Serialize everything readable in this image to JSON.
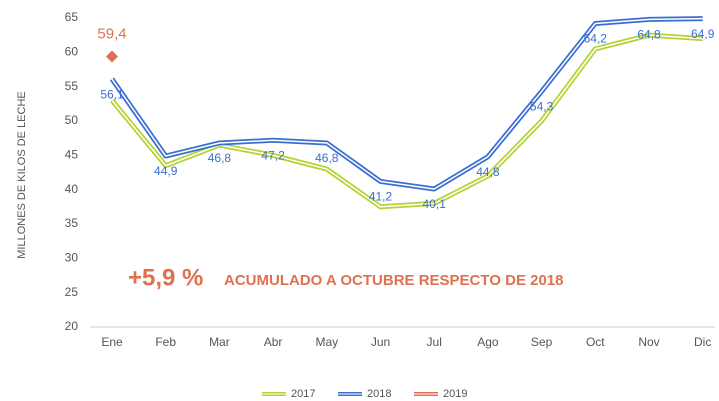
{
  "chart_data": {
    "type": "line",
    "y_label": "MILLONES DE KILOS DE LECHE",
    "annotation_value": "+5,9 %",
    "annotation_text": "ACUMULADO A OCTUBRE RESPECTO DE 2018",
    "categories": [
      "Ene",
      "Feb",
      "Mar",
      "Abr",
      "May",
      "Jun",
      "Jul",
      "Ago",
      "Sep",
      "Oct",
      "Nov",
      "Dic"
    ],
    "ylim": [
      20,
      65
    ],
    "yticks": [
      20,
      25,
      30,
      35,
      40,
      45,
      50,
      55,
      60,
      65
    ],
    "grid": false,
    "series": [
      {
        "name": "2017",
        "color": "#b5d334",
        "values": [
          53,
          43.5,
          46.5,
          45,
          43,
          37.5,
          38,
          42,
          50,
          60.5,
          62.5,
          62
        ]
      },
      {
        "name": "2018",
        "color": "#3a6fd0",
        "values": [
          56.1,
          44.9,
          46.8,
          47.2,
          46.8,
          41.2,
          40.1,
          44.8,
          54.3,
          64.2,
          64.8,
          64.9
        ],
        "value_labels": [
          "56,1",
          "44,9",
          "46,8",
          "47,2",
          "46,8",
          "41,2",
          "40,1",
          "44,8",
          "54,3",
          "64,2",
          "64,8",
          "64,9"
        ]
      },
      {
        "name": "2019",
        "color": "#e07050",
        "values": [
          59.4,
          null,
          null,
          null,
          null,
          null,
          null,
          null,
          null,
          null,
          null,
          null
        ],
        "value_labels": [
          "59,4",
          null,
          null,
          null,
          null,
          null,
          null,
          null,
          null,
          null,
          null,
          null
        ]
      }
    ]
  }
}
